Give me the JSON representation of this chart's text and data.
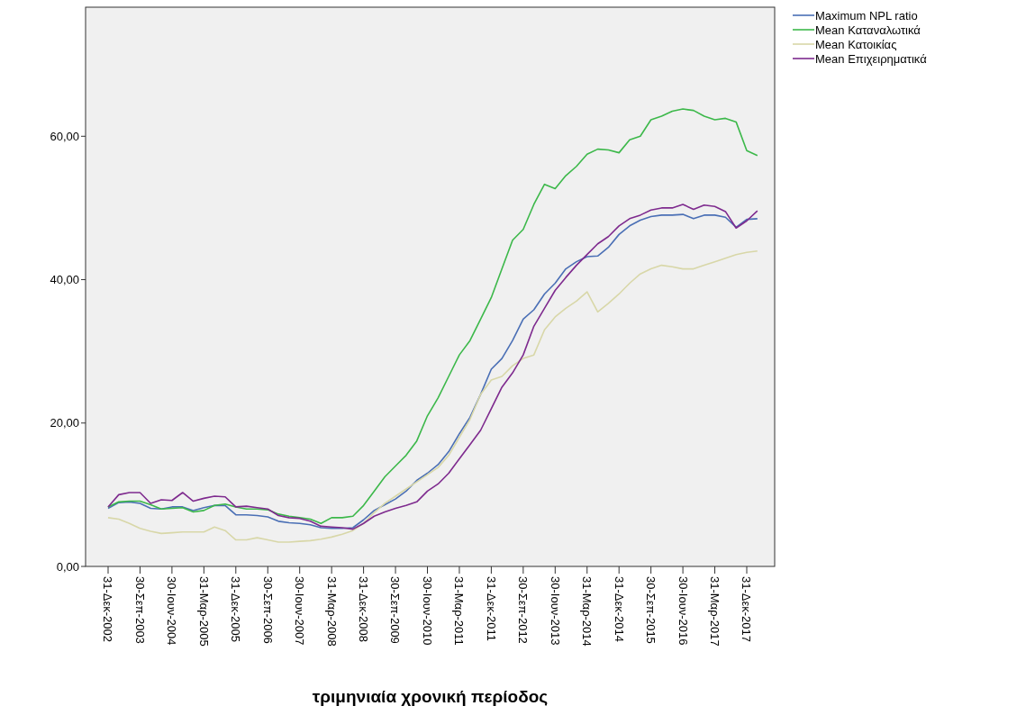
{
  "chart_data": {
    "type": "line",
    "xlabel": "τριμηνιαία χρονική περίοδος",
    "categories": [
      "31-Δεκ-2002",
      null,
      null,
      "30-Σεπ-2003",
      null,
      null,
      "30-Ιουν-2004",
      null,
      null,
      "31-Μαρ-2005",
      null,
      null,
      "31-Δεκ-2005",
      null,
      null,
      "30-Σεπ-2006",
      null,
      null,
      "30-Ιουν-2007",
      null,
      null,
      "31-Μαρ-2008",
      null,
      null,
      "31-Δεκ-2008",
      null,
      null,
      "30-Σεπ-2009",
      null,
      null,
      "30-Ιουν-2010",
      null,
      null,
      "31-Μαρ-2011",
      null,
      null,
      "31-Δεκ-2011",
      null,
      null,
      "30-Σεπ-2012",
      null,
      null,
      "30-Ιουν-2013",
      null,
      null,
      "31-Μαρ-2014",
      null,
      null,
      "31-Δεκ-2014",
      null,
      null,
      "30-Σεπ-2015",
      null,
      null,
      "30-Ιουν-2016",
      null,
      null,
      "31-Μαρ-2017",
      null,
      null,
      "31-Δεκ-2017",
      null
    ],
    "series": [
      {
        "name": "Maximum NPL ratio",
        "color": "#4a6fb5",
        "values": [
          8.1,
          8.9,
          9.0,
          8.8,
          8.1,
          8.0,
          8.3,
          8.3,
          7.8,
          8.2,
          8.5,
          8.5,
          7.2,
          7.2,
          7.1,
          6.9,
          6.3,
          6.1,
          6.0,
          5.8,
          5.4,
          5.3,
          5.3,
          5.4,
          6.5,
          7.8,
          8.6,
          9.4,
          10.5,
          12.0,
          13.0,
          14.2,
          16.0,
          18.5,
          20.8,
          24.0,
          27.5,
          29.0,
          31.5,
          34.5,
          35.8,
          38.0,
          39.5,
          41.5,
          42.5,
          43.2,
          43.3,
          44.5,
          46.3,
          47.5,
          48.3,
          48.8,
          49.0,
          49.0,
          49.1,
          48.5,
          49.0,
          49.0,
          48.7,
          47.3,
          48.4,
          48.5
        ]
      },
      {
        "name": "Mean Καταναλωτικά",
        "color": "#3cb84a",
        "values": [
          8.3,
          9.0,
          9.1,
          9.1,
          8.6,
          8.0,
          8.1,
          8.2,
          7.6,
          7.8,
          8.5,
          8.7,
          8.3,
          8.0,
          8.0,
          7.9,
          7.3,
          7.0,
          6.8,
          6.6,
          6.0,
          6.8,
          6.8,
          7.0,
          8.5,
          10.5,
          12.5,
          14.0,
          15.5,
          17.5,
          21.0,
          23.5,
          26.5,
          29.5,
          31.5,
          34.5,
          37.5,
          41.5,
          45.5,
          47.0,
          50.5,
          53.3,
          52.7,
          54.5,
          55.8,
          57.5,
          58.2,
          58.1,
          57.7,
          59.5,
          60.0,
          62.3,
          62.8,
          63.5,
          63.8,
          63.6,
          62.8,
          62.3,
          62.5,
          62.0,
          58.0,
          57.3
        ]
      },
      {
        "name": "Mean Κατοικίας",
        "color": "#d8d7a8",
        "values": [
          6.8,
          6.6,
          6.0,
          5.3,
          4.9,
          4.6,
          4.7,
          4.8,
          4.8,
          4.8,
          5.5,
          5.0,
          3.7,
          3.7,
          4.0,
          3.7,
          3.4,
          3.4,
          3.5,
          3.6,
          3.8,
          4.1,
          4.5,
          5.0,
          6.0,
          7.5,
          8.8,
          9.8,
          10.8,
          11.8,
          12.8,
          13.8,
          15.5,
          18.0,
          20.5,
          24.0,
          26.0,
          26.5,
          28.0,
          29.0,
          29.5,
          33.0,
          34.8,
          36.0,
          37.0,
          38.3,
          35.5,
          36.7,
          38.0,
          39.5,
          40.8,
          41.5,
          42.0,
          41.8,
          41.5,
          41.5,
          42.0,
          42.5,
          43.0,
          43.5,
          43.8,
          44.0
        ]
      },
      {
        "name": "Mean Επιχειρηματικά",
        "color": "#7e2a8e",
        "values": [
          8.3,
          10.0,
          10.3,
          10.3,
          8.8,
          9.3,
          9.2,
          10.3,
          9.1,
          9.5,
          9.8,
          9.7,
          8.3,
          8.4,
          8.2,
          8.0,
          7.1,
          6.8,
          6.7,
          6.3,
          5.6,
          5.5,
          5.4,
          5.2,
          6.0,
          7.0,
          7.6,
          8.1,
          8.5,
          9.0,
          10.5,
          11.5,
          13.0,
          15.0,
          17.0,
          19.0,
          22.0,
          25.0,
          27.0,
          29.5,
          33.5,
          36.0,
          38.5,
          40.3,
          42.0,
          43.5,
          45.0,
          46.0,
          47.5,
          48.5,
          49.0,
          49.7,
          50.0,
          50.0,
          50.5,
          49.8,
          50.4,
          50.2,
          49.5,
          47.2,
          48.2,
          49.6
        ]
      }
    ],
    "ylim": [
      0,
      78
    ],
    "yticks": [
      {
        "value": 0,
        "label": "0,00"
      },
      {
        "value": 20,
        "label": "20,00"
      },
      {
        "value": 40,
        "label": "40,00"
      },
      {
        "value": 60,
        "label": "60,00"
      }
    ],
    "grid": false,
    "legend": "top right",
    "marker": "none",
    "line_style": "solid"
  }
}
